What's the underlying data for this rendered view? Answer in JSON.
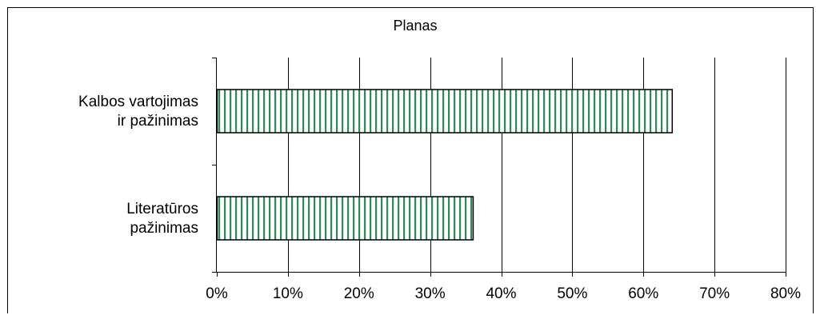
{
  "chart_data": {
    "type": "bar",
    "orientation": "horizontal",
    "title": "Planas",
    "categories": [
      [
        "Kalbos vartojimas",
        "ir pažinimas"
      ],
      [
        "Literatūros",
        "pažinimas"
      ]
    ],
    "values": [
      0.64,
      0.36
    ],
    "xlim": [
      0,
      0.8
    ],
    "xticks": [
      "0%",
      "10%",
      "20%",
      "30%",
      "40%",
      "50%",
      "60%",
      "70%",
      "80%"
    ],
    "grid": "vertical",
    "legend": "none",
    "colors": {
      "bar_fill": "#ffffff",
      "bar_stripe": "#2e8b57",
      "bar_edge": "#000000",
      "grid": "#000000"
    }
  }
}
